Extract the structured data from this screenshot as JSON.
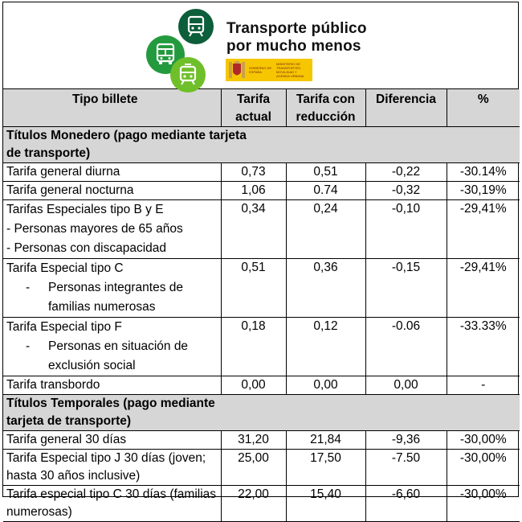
{
  "banner": {
    "title_line1": "Transporte público",
    "title_line2": "por mucho menos",
    "gov_text_1": "GOBIERNO DE ESPAÑA",
    "gov_text_2": "MINISTERIO DE TRANSPORTES, MOVILIDAD Y AGENDA URBANA",
    "colors": {
      "dark": "#0d5e3a",
      "mid": "#249a3e",
      "light": "#6fbf2a",
      "gov": "#f6c700"
    }
  },
  "table": {
    "headers": [
      "Tipo billete",
      "Tarifa actual",
      "Tarifa con reducción",
      "Diferencia",
      "%"
    ],
    "section1": "Títulos Monedero (pago mediante tarjeta de transporte)",
    "rows1": [
      {
        "name": "Tarifa general diurna",
        "actual": "0,73",
        "reducida": "0,51",
        "diferencia": "-0,22",
        "pct": "-30.14%"
      },
      {
        "name": "Tarifa general nocturna",
        "actual": "1,06",
        "reducida": "0.74",
        "diferencia": "-0,32",
        "pct": "-30,19%"
      },
      {
        "name": "Tarifas Especiales tipo B y E",
        "sub": [
          "- Personas mayores de 65 años",
          "- Personas con discapacidad"
        ],
        "actual": "0,34",
        "reducida": "0,24",
        "diferencia": "-0,10",
        "pct": "-29,41%"
      },
      {
        "name": "Tarifa Especial tipo C",
        "sub": [
          "Personas integrantes de familias numerosas"
        ],
        "actual": "0,51",
        "reducida": "0,36",
        "diferencia": "-0,15",
        "pct": "-29,41%"
      },
      {
        "name": "Tarifa Especial tipo F",
        "sub": [
          "Personas en situación de exclusión social"
        ],
        "actual": "0,18",
        "reducida": "0,12",
        "diferencia": "-0.06",
        "pct": "-33.33%"
      },
      {
        "name": "Tarifa transbordo",
        "actual": "0,00",
        "reducida": "0,00",
        "diferencia": "0,00",
        "pct": "-"
      }
    ],
    "section2": "Títulos Temporales (pago mediante tarjeta de transporte)",
    "rows2": [
      {
        "name": "Tarifa general 30 días",
        "actual": "31,20",
        "reducida": "21,84",
        "diferencia": "-9,36",
        "pct": "-30,00%"
      },
      {
        "name": "Tarifa Especial tipo J 30 días (joven; hasta 30 años inclusive)",
        "actual": "25,00",
        "reducida": "17,50",
        "diferencia": "-7.50",
        "pct": "-30,00%"
      },
      {
        "name": "Tarifa especial tipo C 30 días (familias numerosas)",
        "actual": "22,00",
        "reducida": "15,40",
        "diferencia": "-6,60",
        "pct": "-30,00%"
      }
    ]
  }
}
